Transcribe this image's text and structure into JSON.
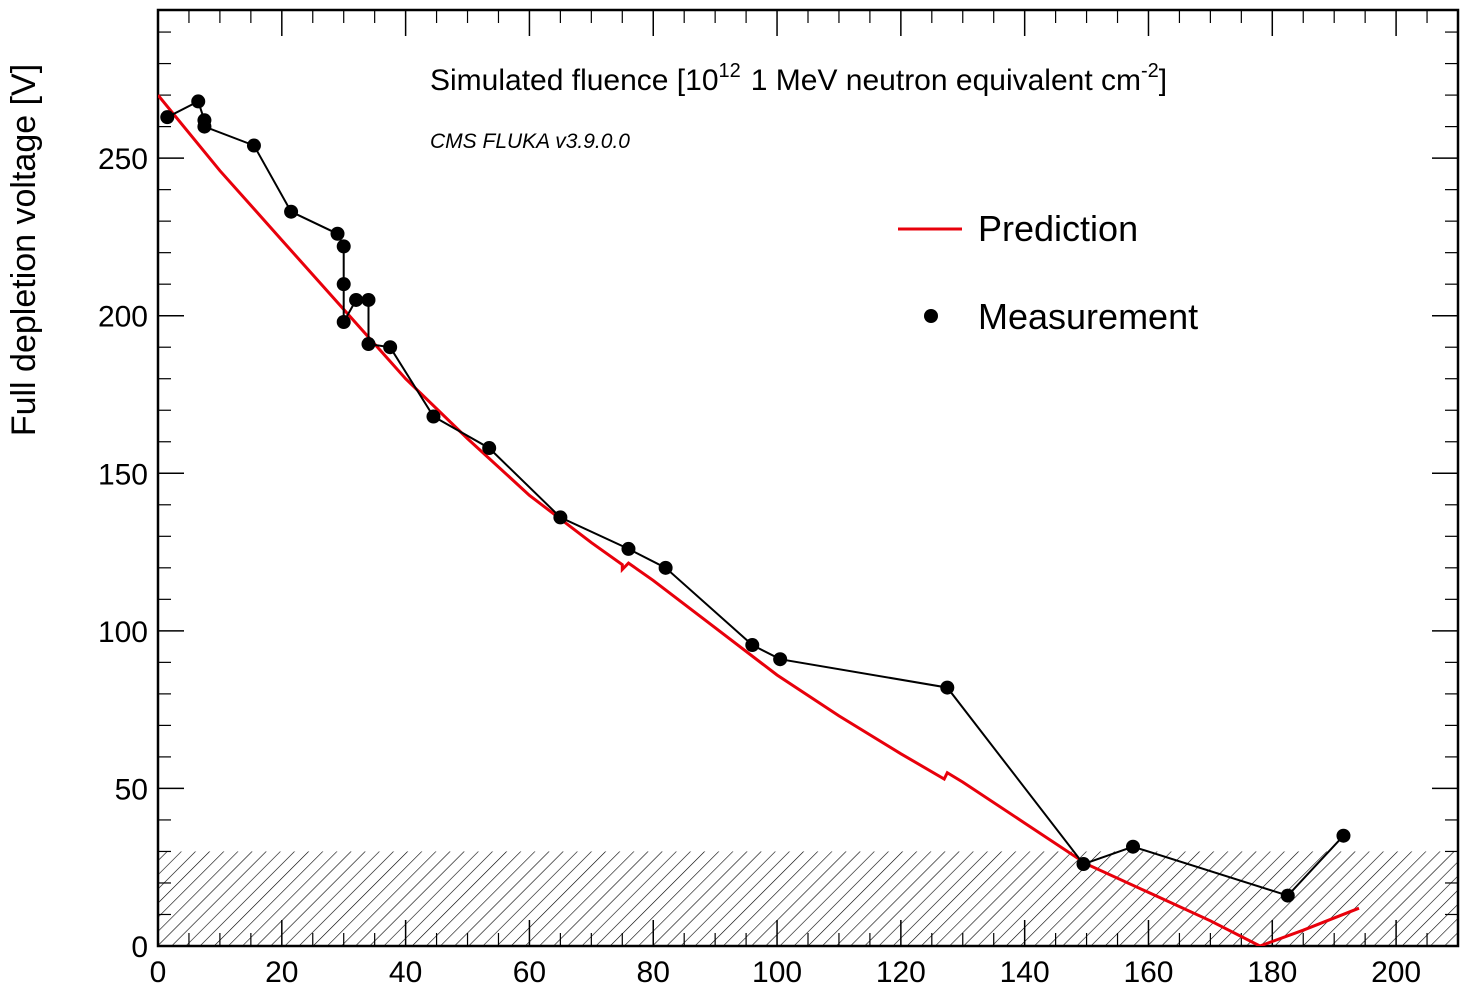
{
  "chart_data": {
    "type": "line",
    "xlabel": "",
    "ylabel": "Full depletion voltage [V]",
    "xlim": [
      0,
      210
    ],
    "ylim": [
      0,
      297
    ],
    "x_ticks": [
      0,
      20,
      40,
      60,
      80,
      100,
      120,
      140,
      160,
      180,
      200
    ],
    "y_ticks": [
      0,
      50,
      100,
      150,
      200,
      250
    ],
    "grid": false,
    "legend_position": "top-right",
    "annotation": {
      "main": "Simulated fluence [10",
      "sup1": "12",
      "mid": "1 MeV neutron equivalent cm",
      "sup2": "-2",
      "end": "]",
      "sub": "CMS FLUKA v3.9.0.0"
    },
    "hatched_band": {
      "y_from": 0,
      "y_to": 30
    },
    "series": [
      {
        "name": "Prediction",
        "color": "#e8000b",
        "style": "line",
        "points": [
          [
            0,
            270
          ],
          [
            10,
            246
          ],
          [
            20,
            224
          ],
          [
            30,
            202
          ],
          [
            40,
            180
          ],
          [
            50,
            161
          ],
          [
            60,
            143
          ],
          [
            70,
            128
          ],
          [
            75,
            121
          ],
          [
            75,
            119.5
          ],
          [
            76,
            121.5
          ],
          [
            80,
            116
          ],
          [
            90,
            101
          ],
          [
            100,
            86
          ],
          [
            110,
            73
          ],
          [
            120,
            61
          ],
          [
            127,
            53
          ],
          [
            127.5,
            55
          ],
          [
            130,
            52
          ],
          [
            140,
            39
          ],
          [
            150,
            26
          ],
          [
            160,
            17
          ],
          [
            170,
            8
          ],
          [
            178,
            0
          ],
          [
            185,
            5
          ],
          [
            194,
            12
          ]
        ]
      },
      {
        "name": "Measurement",
        "color": "#000000",
        "style": "line+markers",
        "points": [
          [
            1.5,
            263
          ],
          [
            6.5,
            268
          ],
          [
            7.5,
            262
          ],
          [
            7.5,
            260
          ],
          [
            15.5,
            254
          ],
          [
            21.5,
            233
          ],
          [
            29,
            226
          ],
          [
            30,
            222
          ],
          [
            30,
            210
          ],
          [
            30,
            198
          ],
          [
            32,
            205
          ],
          [
            34,
            205
          ],
          [
            34,
            191
          ],
          [
            37.5,
            190
          ],
          [
            44.5,
            168
          ],
          [
            53.5,
            158
          ],
          [
            65,
            136
          ],
          [
            76,
            126
          ],
          [
            82,
            120
          ],
          [
            96,
            95.5
          ],
          [
            100.5,
            91
          ],
          [
            127.5,
            82
          ],
          [
            149.5,
            26
          ],
          [
            157.5,
            31.5
          ],
          [
            182.5,
            16
          ],
          [
            191.5,
            35
          ]
        ]
      }
    ]
  }
}
